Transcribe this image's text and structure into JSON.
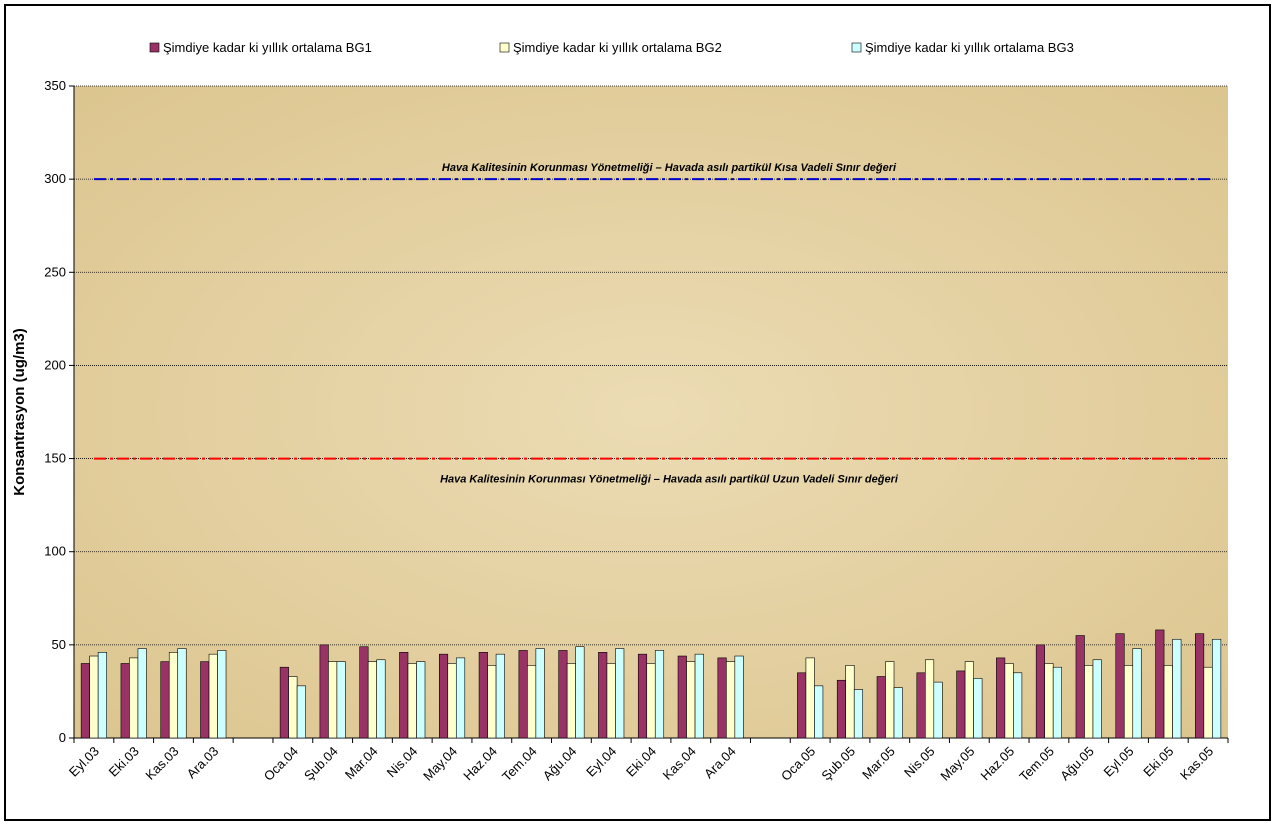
{
  "chart_data": {
    "type": "bar",
    "y_label": "Konsantrasyon (ug/m3)",
    "categories": [
      "Eyl.03",
      "Eki.03",
      "Kas.03",
      "Ara.03",
      null,
      "Oca.04",
      "Şub.04",
      "Mar.04",
      "Nis.04",
      "May.04",
      "Haz.04",
      "Tem.04",
      "Ağu.04",
      "Eyl.04",
      "Eki.04",
      "Kas.04",
      "Ara.04",
      null,
      "Oca.05",
      "Şub.05",
      "Mar.05",
      "Nis.05",
      "May.05",
      "Haz.05",
      "Tem.05",
      "Ağu.05",
      "Eyl.05",
      "Eki.05",
      "Kas.05"
    ],
    "series": [
      {
        "name": "Şimdiye kadar ki yıllık ortalama BG1",
        "color": "#993366",
        "values": [
          40,
          40,
          41,
          41,
          null,
          38,
          50,
          49,
          46,
          45,
          46,
          47,
          47,
          46,
          45,
          44,
          43,
          null,
          35,
          31,
          33,
          35,
          36,
          43,
          50,
          55,
          56,
          58,
          56
        ]
      },
      {
        "name": "Şimdiye kadar ki yıllık ortalama BG2",
        "color": "#ffffcc",
        "values": [
          44,
          43,
          46,
          45,
          null,
          33,
          41,
          41,
          40,
          40,
          39,
          39,
          40,
          40,
          40,
          41,
          41,
          null,
          43,
          39,
          41,
          42,
          41,
          40,
          40,
          39,
          39,
          39,
          38
        ]
      },
      {
        "name": "Şimdiye kadar ki yıllık ortalama BG3",
        "color": "#ccffff",
        "values": [
          46,
          48,
          48,
          47,
          null,
          28,
          41,
          42,
          41,
          43,
          45,
          48,
          49,
          48,
          47,
          45,
          44,
          null,
          28,
          26,
          27,
          30,
          32,
          35,
          38,
          42,
          48,
          53,
          53
        ]
      }
    ],
    "reference_lines": [
      {
        "value": 300,
        "color": "#0000cc",
        "label": "Hava Kalitesinin Korunması Yönetmeliği – Havada asılı partikül Kısa Vadeli Sınır değeri"
      },
      {
        "value": 150,
        "color": "#ff0000",
        "label": "Hava Kalitesinin Korunması Yönetmeliği – Havada asılı partikül Uzun Vadeli Sınır değeri"
      }
    ],
    "ylim": [
      0,
      350
    ],
    "yticks": [
      0,
      50,
      100,
      150,
      200,
      250,
      300,
      350
    ],
    "grid": true
  }
}
